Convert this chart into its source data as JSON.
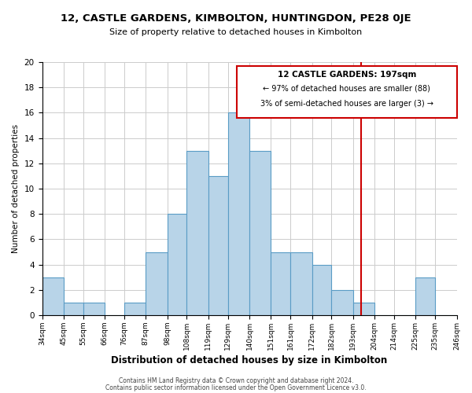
{
  "title_line1": "12, CASTLE GARDENS, KIMBOLTON, HUNTINGDON, PE28 0JE",
  "title_line2": "Size of property relative to detached houses in Kimbolton",
  "xlabel": "Distribution of detached houses by size in Kimbolton",
  "ylabel": "Number of detached properties",
  "bar_edges": [
    34,
    45,
    55,
    66,
    76,
    87,
    98,
    108,
    119,
    129,
    140,
    151,
    161,
    172,
    182,
    193,
    204,
    214,
    225,
    235,
    246
  ],
  "bar_heights": [
    3,
    1,
    1,
    0,
    1,
    5,
    8,
    13,
    11,
    16,
    13,
    5,
    5,
    4,
    2,
    1,
    0,
    0,
    3,
    0
  ],
  "bar_color": "#b8d4e8",
  "bar_edge_color": "#5a9cc5",
  "ylim": [
    0,
    20
  ],
  "yticks": [
    0,
    2,
    4,
    6,
    8,
    10,
    12,
    14,
    16,
    18,
    20
  ],
  "vline_x": 197,
  "vline_color": "#cc0000",
  "annotation_title": "12 CASTLE GARDENS: 197sqm",
  "annotation_line1": "← 97% of detached houses are smaller (88)",
  "annotation_line2": "3% of semi-detached houses are larger (3) →",
  "annotation_box_color": "#cc0000",
  "footer_line1": "Contains HM Land Registry data © Crown copyright and database right 2024.",
  "footer_line2": "Contains public sector information licensed under the Open Government Licence v3.0.",
  "tick_labels": [
    "34sqm",
    "45sqm",
    "55sqm",
    "66sqm",
    "76sqm",
    "87sqm",
    "98sqm",
    "108sqm",
    "119sqm",
    "129sqm",
    "140sqm",
    "151sqm",
    "161sqm",
    "172sqm",
    "182sqm",
    "193sqm",
    "204sqm",
    "214sqm",
    "225sqm",
    "235sqm",
    "246sqm"
  ],
  "background_color": "#ffffff",
  "grid_color": "#cccccc"
}
